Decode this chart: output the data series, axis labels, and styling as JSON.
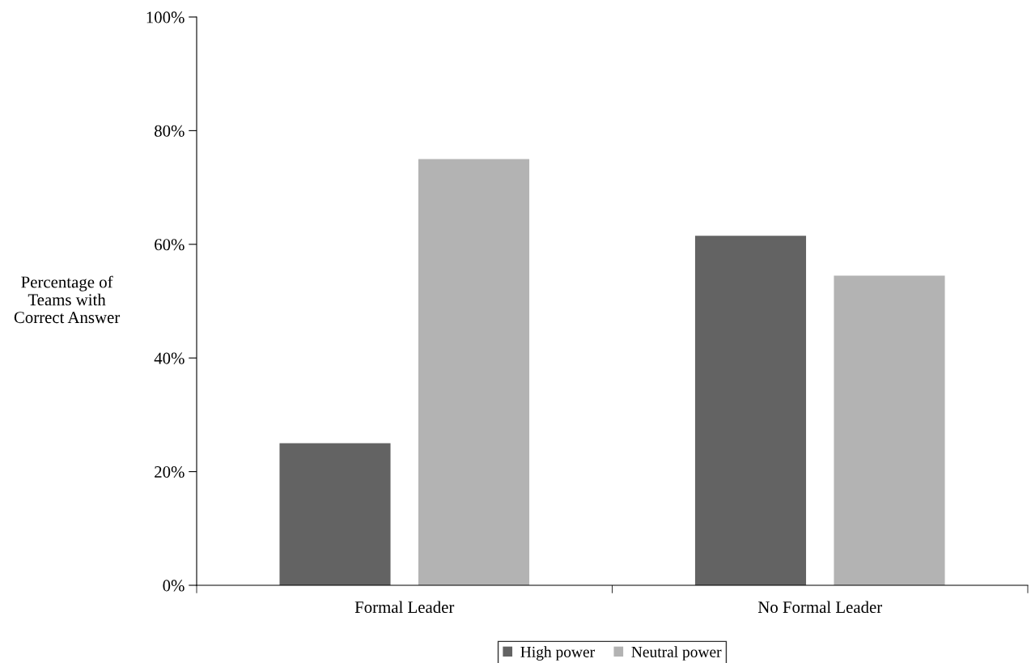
{
  "chart_data": {
    "type": "bar",
    "ylabel": "Percentage of\nTeams with\nCorrect Answer",
    "categories": [
      "Formal Leader",
      "No Formal Leader"
    ],
    "series": [
      {
        "name": "High power",
        "color": "#636363",
        "values": [
          25,
          61.5
        ]
      },
      {
        "name": "Neutral power",
        "color": "#b3b3b3",
        "values": [
          75,
          54.5
        ]
      }
    ],
    "ylim": [
      0,
      100
    ],
    "yticks": [
      {
        "value": 0,
        "label": "0%"
      },
      {
        "value": 20,
        "label": "20%"
      },
      {
        "value": 40,
        "label": "40%"
      },
      {
        "value": 60,
        "label": "60%"
      },
      {
        "value": 80,
        "label": "80%"
      },
      {
        "value": 100,
        "label": "100%"
      }
    ],
    "grid": false,
    "legend": "bottom"
  }
}
